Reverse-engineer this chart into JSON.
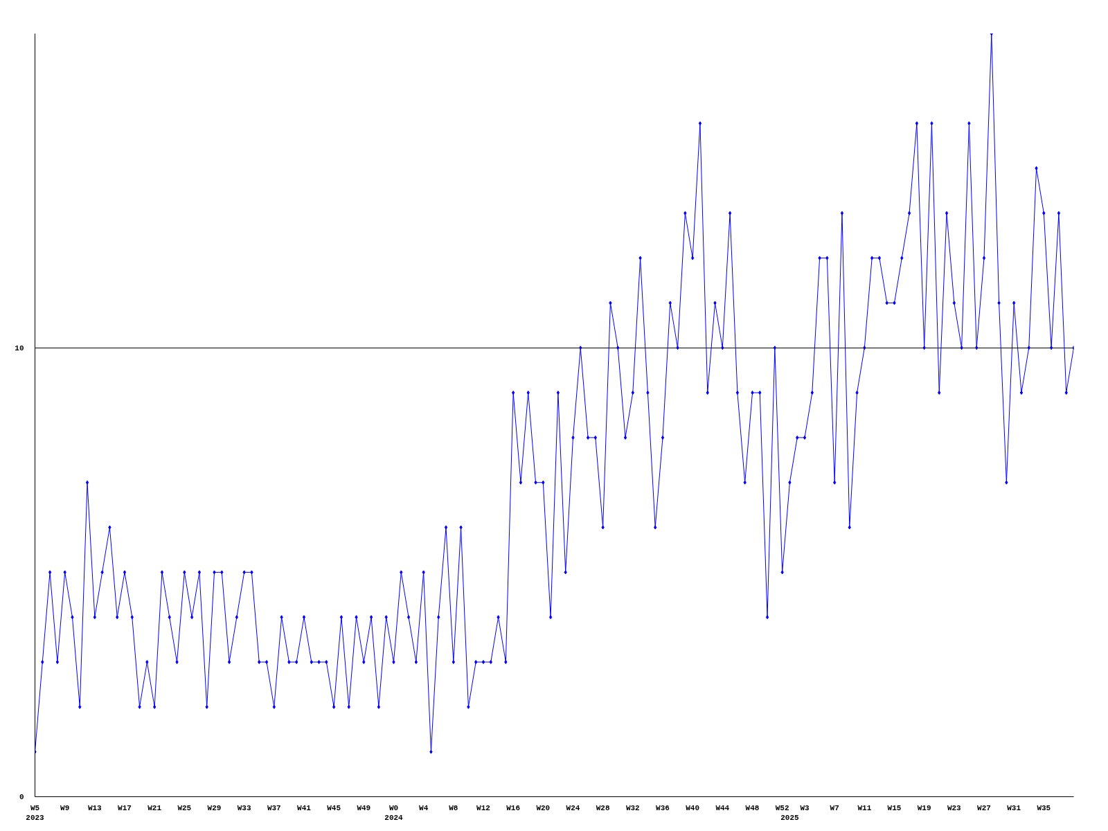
{
  "chart_data": {
    "type": "line",
    "categories": [
      "W5\n2023",
      null,
      null,
      null,
      "W9",
      null,
      null,
      null,
      "W13",
      null,
      null,
      null,
      "W17",
      null,
      null,
      null,
      "W21",
      null,
      null,
      null,
      "W25",
      null,
      null,
      null,
      "W29",
      null,
      null,
      null,
      "W33",
      null,
      null,
      null,
      "W37",
      null,
      null,
      null,
      "W41",
      null,
      null,
      null,
      "W45",
      null,
      null,
      null,
      "W49",
      null,
      null,
      null,
      "W0\n2024",
      null,
      null,
      null,
      "W4",
      null,
      null,
      null,
      "W8",
      null,
      null,
      null,
      "W12",
      null,
      null,
      null,
      "W16",
      null,
      null,
      null,
      "W20",
      null,
      null,
      null,
      "W24",
      null,
      null,
      null,
      "W28",
      null,
      null,
      null,
      "W32",
      null,
      null,
      null,
      "W36",
      null,
      null,
      null,
      "W40",
      null,
      null,
      null,
      "W44",
      null,
      null,
      null,
      "W48",
      null,
      null,
      null,
      "W52",
      "\n2025",
      null,
      "W3",
      null,
      null,
      null,
      "W7",
      null,
      null,
      null,
      "W11",
      null,
      null,
      null,
      "W15",
      null,
      null,
      null,
      "W19",
      null,
      null,
      null,
      "W23",
      null,
      null,
      null,
      "W27",
      null,
      null,
      null,
      "W31",
      null,
      null,
      null,
      "W35",
      null,
      null,
      null,
      null
    ],
    "series": [
      {
        "color": "#0000ff",
        "values": [
          1,
          3,
          5,
          3,
          5,
          4,
          2,
          7,
          4,
          5,
          6,
          4,
          5,
          4,
          2,
          3,
          2,
          5,
          4,
          3,
          5,
          4,
          5,
          2,
          5,
          5,
          3,
          4,
          5,
          5,
          3,
          3,
          2,
          4,
          3,
          3,
          4,
          3,
          3,
          3,
          2,
          4,
          2,
          4,
          3,
          4,
          2,
          4,
          3,
          5,
          4,
          3,
          5,
          1,
          4,
          6,
          3,
          6,
          2,
          3,
          3,
          3,
          4,
          3,
          9,
          7,
          9,
          7,
          7,
          4,
          9,
          5,
          8,
          10,
          8,
          8,
          6,
          11,
          10,
          8,
          9,
          12,
          9,
          6,
          8,
          11,
          10,
          13,
          12,
          15,
          9,
          11,
          10,
          13,
          9,
          7,
          9,
          9,
          4,
          10,
          5,
          7,
          8,
          8,
          9,
          12,
          12,
          7,
          13,
          6,
          9,
          10,
          12,
          12,
          11,
          11,
          12,
          13,
          15,
          10,
          15,
          9,
          13,
          11,
          10,
          15,
          10,
          12,
          17,
          11,
          7,
          11,
          9,
          10,
          14,
          13,
          10,
          13,
          9,
          10
        ]
      }
    ],
    "ylim": [
      0,
      17
    ],
    "yticks": [
      0,
      10
    ],
    "grid": "y",
    "marker": "diamond",
    "line_style": "solid"
  }
}
